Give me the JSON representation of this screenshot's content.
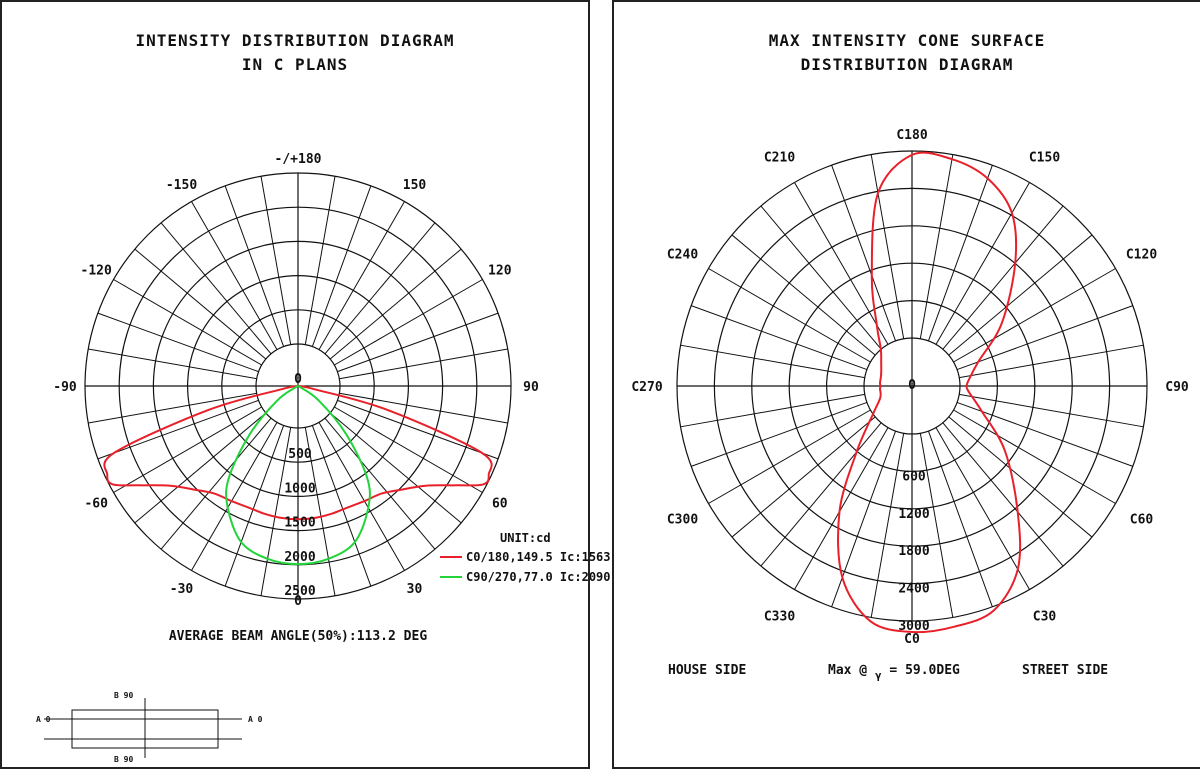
{
  "left_panel": {
    "title_line1": "INTENSITY DISTRIBUTION DIAGRAM",
    "title_line2": "IN C PLANS",
    "unit_label": "UNIT:cd",
    "average_beam": "AVERAGE BEAM ANGLE(50%):113.2 DEG",
    "diagram": {
      "b90_top": "B 90",
      "b90_bottom": "B 90",
      "a0_left": "A 0",
      "a0_right": "A 0"
    }
  },
  "right_panel": {
    "title_line1": "MAX INTENSITY CONE SURFACE",
    "title_line2": "DISTRIBUTION DIAGRAM",
    "house_side": "HOUSE SIDE",
    "max_label": "Max @ ",
    "gamma_symbol": "γ",
    "max_value": " = 59.0DEG",
    "street_side": "STREET SIDE"
  },
  "colors": {
    "red": "#e8202a",
    "green": "#22d43a",
    "grid": "#111111"
  },
  "chart_data": [
    {
      "type": "polar",
      "title": "INTENSITY DISTRIBUTION DIAGRAM IN C PLANS",
      "unit": "UNIT:cd",
      "radial_ticks": [
        "0",
        "500",
        "1000",
        "1500",
        "2000",
        "2500"
      ],
      "radial_range": [
        0,
        2500
      ],
      "angle_labels": [
        "-/+180",
        "150",
        "120",
        "90",
        "60",
        "30",
        "0",
        "-30",
        "-60",
        "-90",
        "-120",
        "-150"
      ],
      "series": [
        {
          "name": "C0/180,149.5 Ic:1563",
          "color": "#e8202a",
          "angles": [
            -79,
            -75,
            -70,
            -65,
            -62,
            -58,
            -52,
            -45,
            -38,
            -30,
            -22,
            -15,
            -8,
            0,
            8,
            15,
            22,
            30,
            38,
            45,
            52,
            58,
            62,
            65,
            70,
            75,
            79
          ],
          "values": [
            200,
            1100,
            2300,
            2470,
            2460,
            2200,
            1900,
            1720,
            1600,
            1560,
            1540,
            1550,
            1560,
            1563,
            1560,
            1550,
            1540,
            1560,
            1600,
            1720,
            1900,
            2200,
            2460,
            2470,
            2300,
            1100,
            200
          ]
        },
        {
          "name": "C90/270,77.0 Ic:2090",
          "color": "#22d43a",
          "angles": [
            -62,
            -55,
            -45,
            -37,
            -30,
            -20,
            -10,
            0,
            10,
            20,
            30,
            37,
            45,
            55,
            62
          ],
          "values": [
            30,
            300,
            800,
            1350,
            1650,
            1950,
            2060,
            2090,
            2060,
            1950,
            1650,
            1350,
            800,
            300,
            30
          ]
        }
      ]
    },
    {
      "type": "polar",
      "title": "MAX INTENSITY CONE SURFACE DISTRIBUTION DIAGRAM",
      "radial_ticks": [
        "0",
        "600",
        "1200",
        "1800",
        "2400",
        "3000"
      ],
      "radial_range": [
        0,
        3000
      ],
      "angle_labels": [
        "C180",
        "C150",
        "C120",
        "C90",
        "C60",
        "C30",
        "C0",
        "C330",
        "C300",
        "C270",
        "C240",
        "C210"
      ],
      "series": [
        {
          "name": "",
          "color": "#e8202a",
          "angles": [
            0,
            10,
            20,
            30,
            40,
            55,
            70,
            85,
            90,
            95,
            110,
            125,
            140,
            150,
            160,
            170,
            180,
            190,
            200,
            210,
            220,
            235,
            250,
            265,
            270,
            275,
            290,
            305,
            320,
            330,
            340,
            350
          ],
          "values": [
            3140,
            3120,
            3050,
            2700,
            2100,
            1450,
            950,
            720,
            700,
            720,
            900,
            1400,
            2050,
            2550,
            2820,
            2940,
            2950,
            2500,
            1500,
            900,
            620,
            480,
            420,
            410,
            400,
            410,
            430,
            600,
            1100,
            1850,
            2600,
            3050
          ]
        }
      ],
      "max_gamma": "59.0DEG"
    }
  ]
}
